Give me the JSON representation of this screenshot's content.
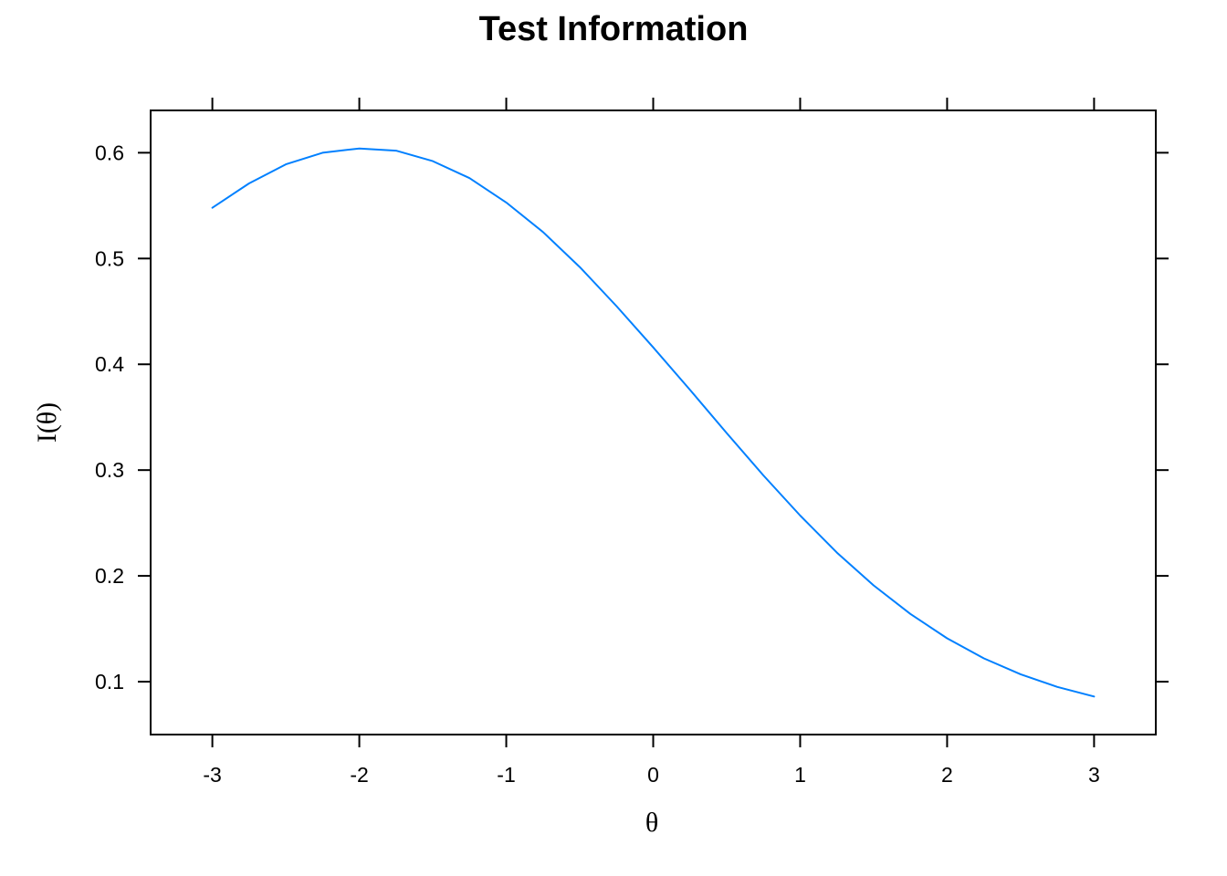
{
  "chart_data": {
    "type": "line",
    "title": "Test Information",
    "xlabel": "θ",
    "ylabel": "I(θ)",
    "xlim": [
      -3.42,
      3.42
    ],
    "ylim": [
      0.05,
      0.64
    ],
    "x_ticks": [
      -3,
      -2,
      -1,
      0,
      1,
      2,
      3
    ],
    "x_tick_labels": [
      "-3",
      "-2",
      "-1",
      "0",
      "1",
      "2",
      "3"
    ],
    "y_ticks": [
      0.1,
      0.2,
      0.3,
      0.4,
      0.5,
      0.6
    ],
    "y_tick_labels": [
      "0.1",
      "0.2",
      "0.3",
      "0.4",
      "0.5",
      "0.6"
    ],
    "grid": false,
    "series": [
      {
        "color": "#0080ff",
        "x": [
          -3.0,
          -2.75,
          -2.5,
          -2.25,
          -2.0,
          -1.75,
          -1.5,
          -1.25,
          -1.0,
          -0.75,
          -0.5,
          -0.25,
          0.0,
          0.25,
          0.5,
          0.75,
          1.0,
          1.25,
          1.5,
          1.75,
          2.0,
          2.25,
          2.5,
          2.75,
          3.0
        ],
        "y": [
          0.548,
          0.571,
          0.589,
          0.6,
          0.604,
          0.602,
          0.592,
          0.576,
          0.553,
          0.525,
          0.492,
          0.455,
          0.416,
          0.376,
          0.335,
          0.295,
          0.257,
          0.222,
          0.191,
          0.164,
          0.141,
          0.122,
          0.107,
          0.095,
          0.086
        ]
      }
    ]
  }
}
